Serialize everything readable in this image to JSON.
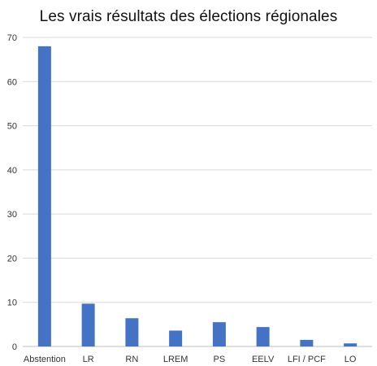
{
  "chart_data": {
    "type": "bar",
    "title": "Les vrais résultats des élections régionales",
    "categories": [
      "Abstention",
      "LR",
      "RN",
      "LREM",
      "PS",
      "EELV",
      "LFI / PCF",
      "LO"
    ],
    "values": [
      68,
      9.7,
      6.4,
      3.6,
      5.5,
      4.4,
      1.5,
      0.7
    ],
    "ylim": [
      0,
      70
    ],
    "yticks": [
      0,
      10,
      20,
      30,
      40,
      50,
      60,
      70
    ],
    "xlabel": "",
    "ylabel": "",
    "grid": true,
    "bar_color": "#4472C4"
  }
}
